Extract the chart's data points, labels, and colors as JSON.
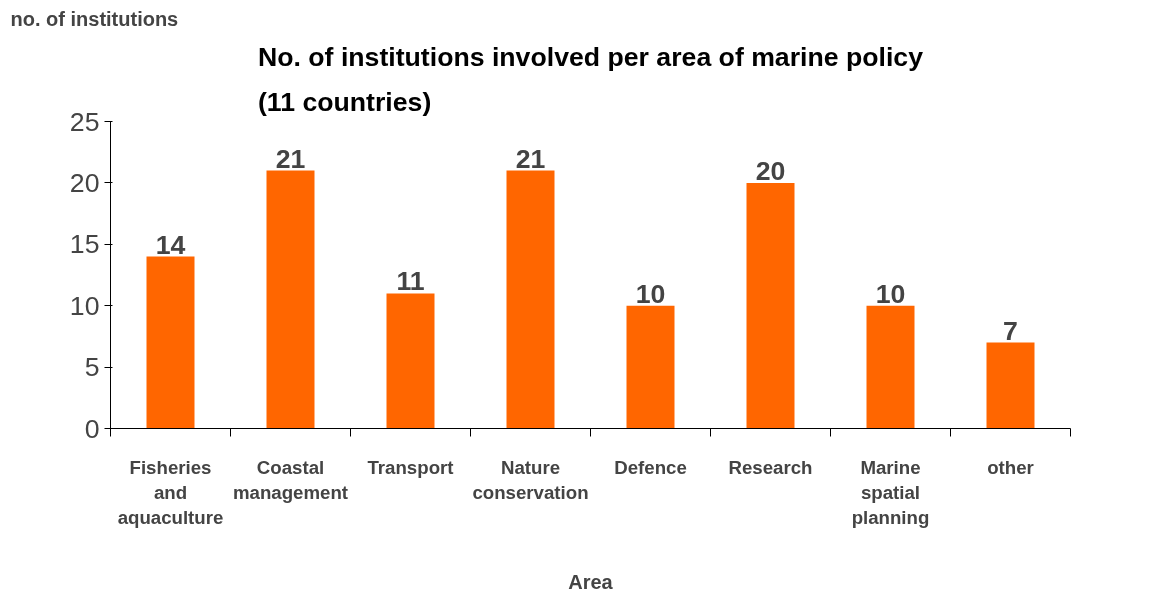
{
  "chart_data": {
    "type": "bar",
    "title": "No. of institutions involved per area of marine policy (11 countries)",
    "xlabel": "Area",
    "ylabel": "no. of institutions",
    "categories": [
      "Fisheries and aquaculture",
      "Coastal management",
      "Transport",
      "Nature conservation",
      "Defence",
      "Research",
      "Marine spatial planning",
      "other"
    ],
    "values": [
      14,
      21,
      11,
      21,
      10,
      20,
      10,
      7
    ],
    "color": "#ff6600",
    "ylim": [
      0,
      25
    ],
    "yticks": [
      0,
      5,
      10,
      15,
      20,
      25
    ],
    "grid": false,
    "data_labels": true
  }
}
